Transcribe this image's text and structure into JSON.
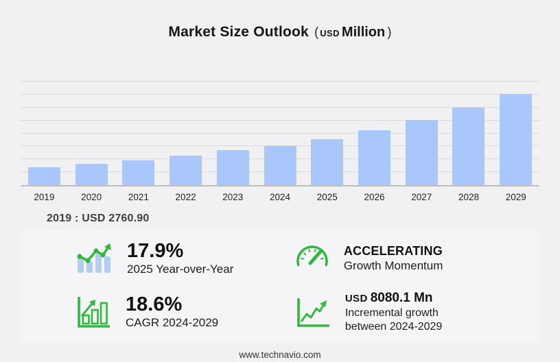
{
  "header": {
    "title": "Market Size Outlook",
    "unit_open": "(",
    "unit_currency": "USD",
    "unit_word": "Million",
    "unit_close": ")"
  },
  "chart_data": {
    "type": "bar",
    "title": "Market Size Outlook (USD Million)",
    "categories": [
      "2019",
      "2020",
      "2021",
      "2022",
      "2023",
      "2024",
      "2025",
      "2026",
      "2027",
      "2028",
      "2029"
    ],
    "values": [
      2760.9,
      3330,
      3850,
      4530,
      5360,
      5992.8,
      7065.5,
      8430,
      10080,
      12020,
      14072.9
    ],
    "xlabel": "",
    "ylabel": "USD Million",
    "ylim": [
      0,
      16000
    ],
    "gridline_step": 2000,
    "grid": true,
    "legend": false,
    "bar_color": "#a9c7fb"
  },
  "annotation": {
    "base_year_value": "2019 : USD  2760.90"
  },
  "stats": {
    "yoy": {
      "value": "17.9%",
      "label": "2025 Year-over-Year"
    },
    "momentum": {
      "value": "ACCELERATING",
      "label": "Growth Momentum"
    },
    "cagr": {
      "value": "18.6%",
      "label": "CAGR 2024-2029"
    },
    "incremental": {
      "currency": "USD",
      "value": "8080.1 Mn",
      "label": "Incremental growth between 2024-2029"
    }
  },
  "footer": {
    "website": "www.technavio.com"
  },
  "colors": {
    "accent_green": "#30b83f",
    "icon_bar_blue": "#b3cdf1",
    "bar_blue": "#a9c7fb",
    "background": "#f1f1f3",
    "panel": "#f5f4f6"
  }
}
